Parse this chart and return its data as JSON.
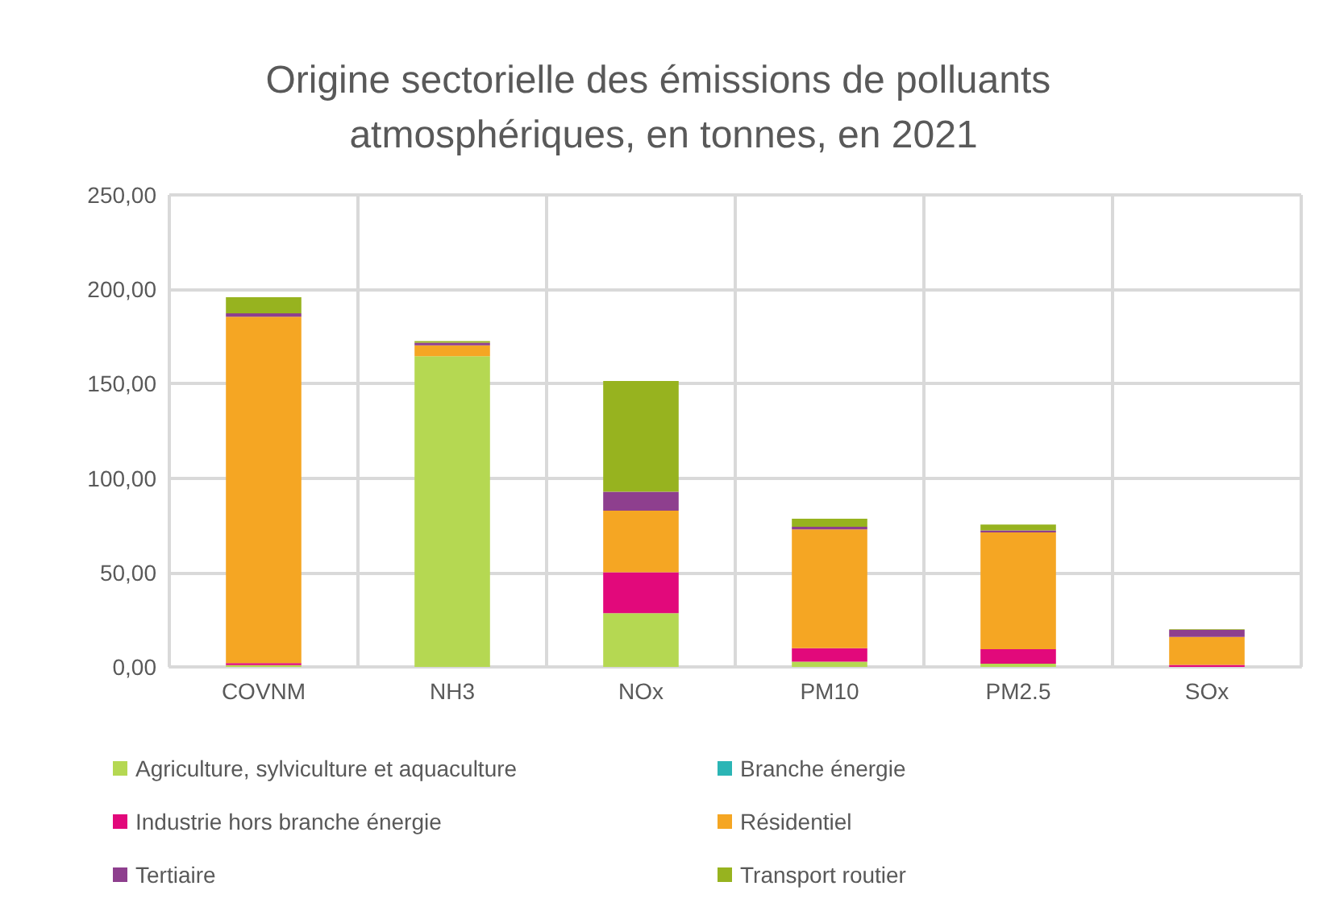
{
  "chart_data": {
    "type": "bar",
    "title": "Origine sectorielle des émissions de polluants atmosphériques, en tonnes, en 2021",
    "categories": [
      "COVNM",
      "NH3",
      "NOx",
      "PM10",
      "PM2.5",
      "SOx"
    ],
    "stacked": true,
    "series": [
      {
        "name": "Agriculture, sylviculture et aquaculture",
        "color": "#b5d852",
        "values": [
          1.0,
          164.6,
          28.5,
          2.8,
          1.7,
          0
        ]
      },
      {
        "name": "Branche énergie",
        "color": "#2bb5b5",
        "values": [
          0,
          0,
          0,
          0,
          0,
          0
        ]
      },
      {
        "name": "Industrie hors branche énergie",
        "color": "#e2097b",
        "values": [
          1.0,
          0,
          21.6,
          7.1,
          7.7,
          1.1
        ]
      },
      {
        "name": "Résidentiel",
        "color": "#f5a623",
        "values": [
          183.5,
          5.7,
          32.7,
          62.9,
          61.8,
          14.8
        ]
      },
      {
        "name": "Tertiaire",
        "color": "#8e3f8e",
        "values": [
          1.8,
          1.4,
          10.0,
          1.4,
          1.1,
          3.7
        ]
      },
      {
        "name": "Transport routier",
        "color": "#97b31f",
        "values": [
          8.5,
          0.9,
          58.7,
          4.3,
          3.1,
          0.3
        ]
      }
    ],
    "ylim": [
      0,
      250
    ],
    "yticks": [
      {
        "value": 0,
        "label": "0,00"
      },
      {
        "value": 50,
        "label": "50,00"
      },
      {
        "value": 100,
        "label": "100,00"
      },
      {
        "value": 150,
        "label": "150,00"
      },
      {
        "value": 200,
        "label": "200,00"
      },
      {
        "value": 250,
        "label": "250,00"
      }
    ],
    "grid": true,
    "legend": "bottom"
  }
}
